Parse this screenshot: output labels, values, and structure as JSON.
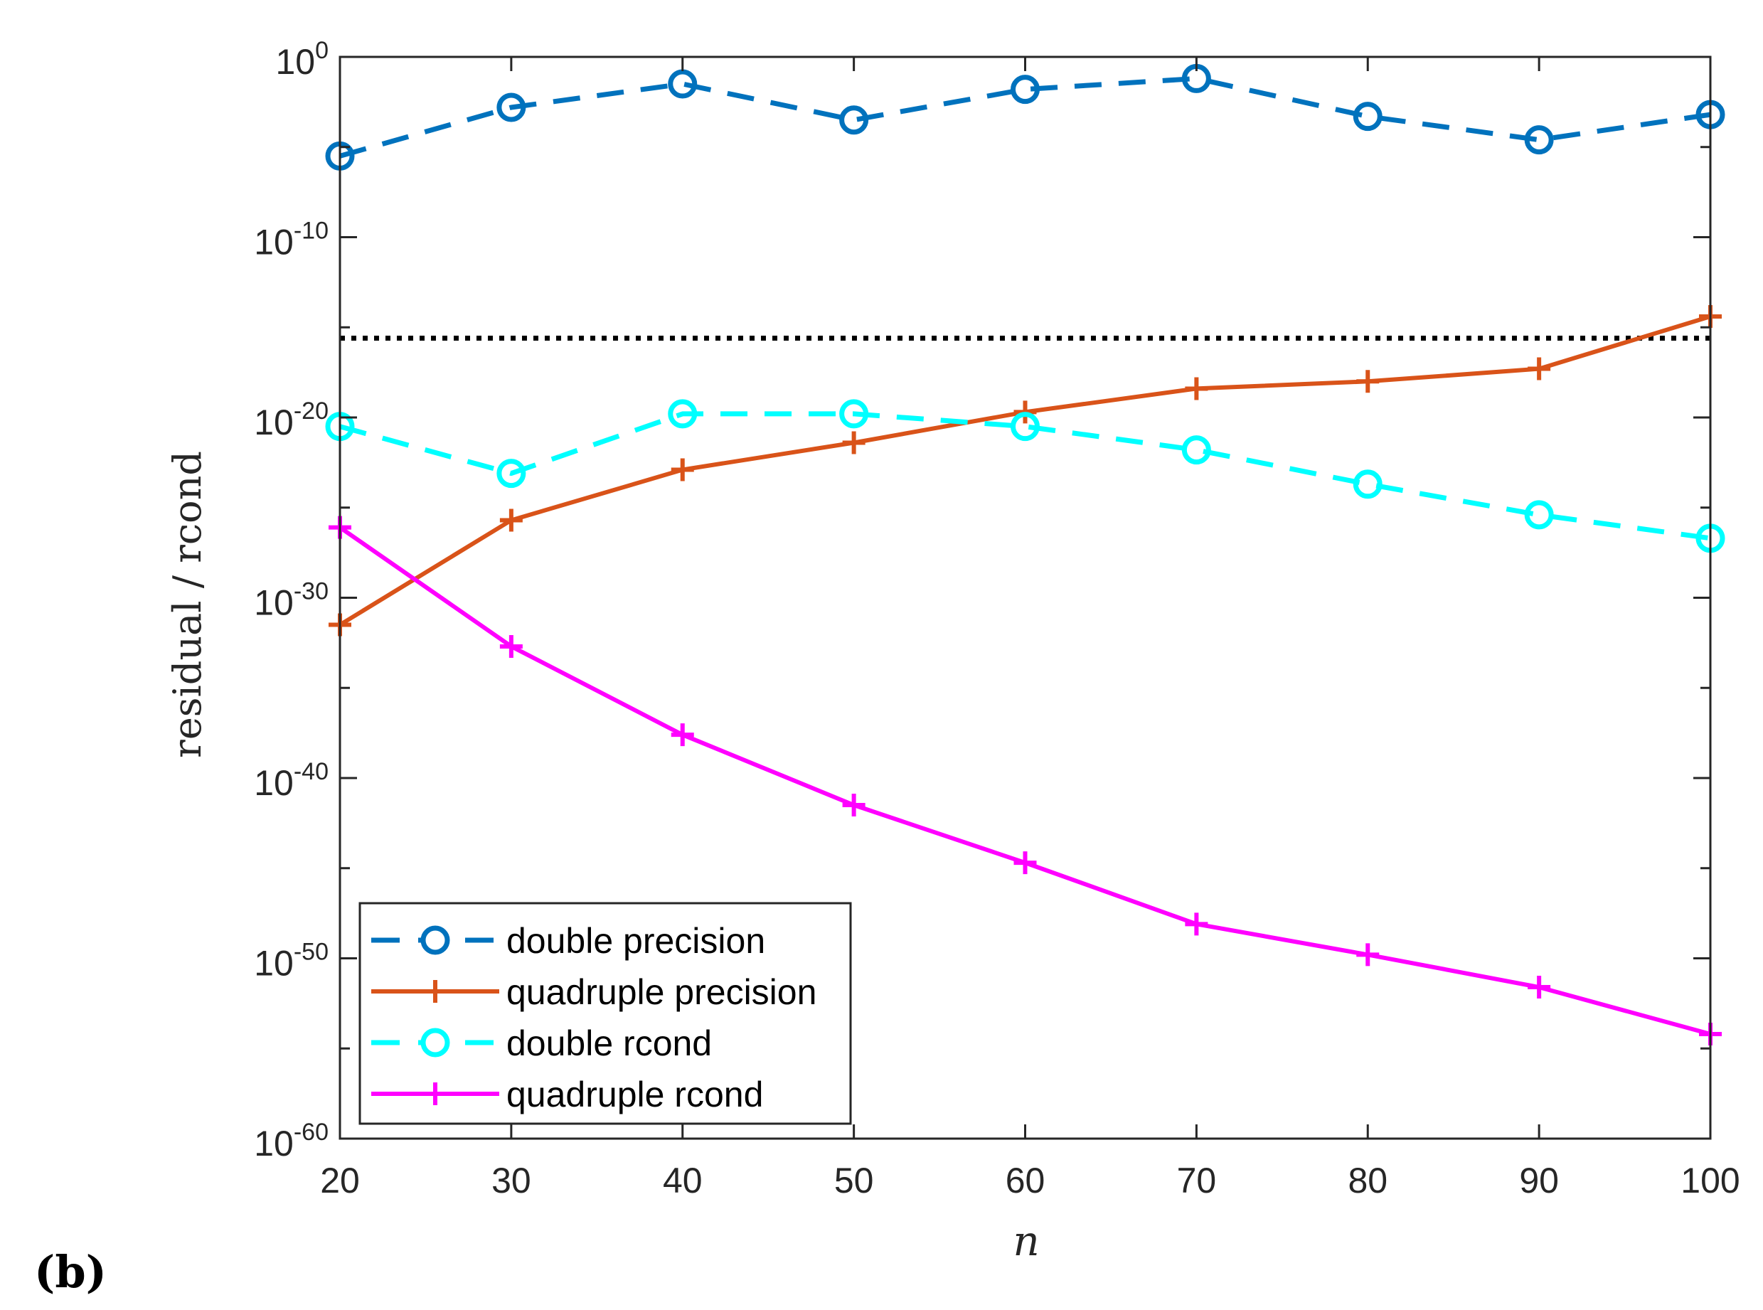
{
  "panel_label": "(b)",
  "chart_data": {
    "type": "line",
    "yscale": "log",
    "title": "",
    "xlabel": "n",
    "ylabel": "residual / rcond",
    "xlim": [
      20,
      100
    ],
    "ylim_exponent": [
      -60,
      0
    ],
    "x": [
      20,
      30,
      40,
      50,
      60,
      70,
      80,
      90,
      100
    ],
    "x_ticks": [
      "20",
      "30",
      "40",
      "50",
      "60",
      "70",
      "80",
      "90",
      "100"
    ],
    "y_ticks": [
      {
        "exponent": 0,
        "base": "10",
        "exp": "0"
      },
      {
        "exponent": -10,
        "base": "10",
        "exp": "-10"
      },
      {
        "exponent": -20,
        "base": "10",
        "exp": "-20"
      },
      {
        "exponent": -30,
        "base": "10",
        "exp": "-30"
      },
      {
        "exponent": -40,
        "base": "10",
        "exp": "-40"
      },
      {
        "exponent": -50,
        "base": "10",
        "exp": "-50"
      },
      {
        "exponent": -60,
        "base": "10",
        "exp": "-60"
      }
    ],
    "reference_line": {
      "exponent": -15.6,
      "style": "dotted",
      "color": "#000000"
    },
    "legend_position": "bottom-left",
    "series": [
      {
        "name": "double precision",
        "color": "#0072bd",
        "dash": "dashed",
        "marker": "circle",
        "log10_values": [
          -5.5,
          -2.8,
          -1.5,
          -3.5,
          -1.8,
          -1.2,
          -3.3,
          -4.6,
          -3.2
        ]
      },
      {
        "name": "quadruple precision",
        "color": "#d95319",
        "dash": "solid",
        "marker": "plus",
        "log10_values": [
          -31.5,
          -25.7,
          -22.9,
          -21.4,
          -19.7,
          -18.4,
          -18.0,
          -17.3,
          -14.4
        ]
      },
      {
        "name": "double rcond",
        "color": "#00ffff",
        "dash": "dashed",
        "marker": "circle",
        "log10_values": [
          -20.5,
          -23.1,
          -19.8,
          -19.8,
          -20.5,
          -21.8,
          -23.7,
          -25.4,
          -26.7
        ]
      },
      {
        "name": "quadruple rcond",
        "color": "#ff00ff",
        "dash": "solid",
        "marker": "plus",
        "log10_values": [
          -26.1,
          -32.7,
          -37.6,
          -41.5,
          -44.7,
          -48.1,
          -49.8,
          -51.6,
          -54.2
        ]
      }
    ]
  }
}
